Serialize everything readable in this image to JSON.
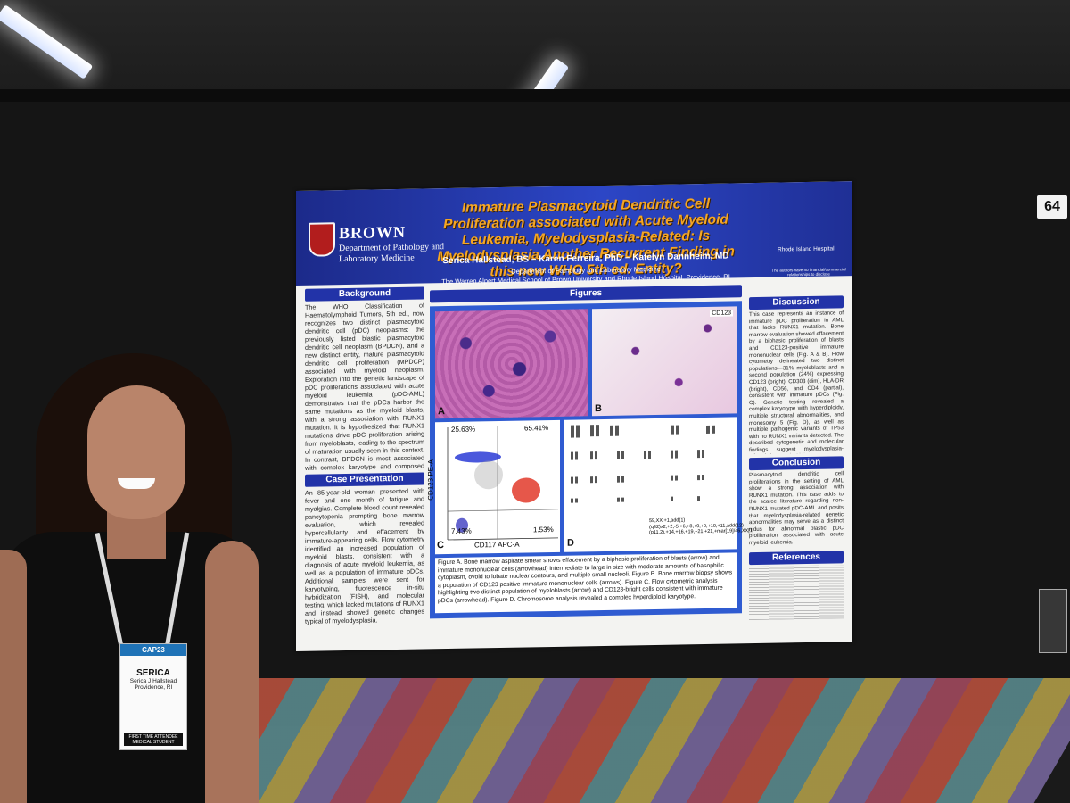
{
  "booth_number": "64",
  "poster": {
    "title": "Immature Plasmacytoid Dendritic Cell Proliferation associated with Acute Myeloid Leukemia, Myelodysplasia-Related: Is Myelodysplasia Another Recurrent Finding in this new WHO 5th ed. Entity?",
    "authors": "Serica Hallstead, BS – Karen Ferreira, PhD – Katelyn Dannheim, MD",
    "department": "Department of Pathology and Laboratory Medicine",
    "school": "The Warren Alpert Medical School of Brown University and Rhode Island Hospital, Providence, RI",
    "logo": {
      "name": "BROWN",
      "dept": "Department of Pathology and Laboratory Medicine"
    },
    "hospital_logo": "Rhode Island Hospital",
    "disclosure": "The authors have no financial/commercial relationships to disclose",
    "sections": {
      "background": {
        "heading": "Background",
        "text": "The WHO Classification of Haematolymphoid Tumors, 5th ed., now recognizes two distinct plasmacytoid dendritic cell (pDC) neoplasms: the previously listed blastic plasmacytoid dendritic cell neoplasm (BPDCN), and a new distinct entity, mature plasmacytoid dendritic cell proliferation (MPDCP) associated with myeloid neoplasm. Exploration into the genetic landscape of pDC proliferations associated with acute myeloid leukemia (pDC-AML) demonstrates that the pDCs harbor the same mutations as the myeloid blasts, with a strong association with RUNX1 mutation. It is hypothesized that RUNX1 mutations drive pDC proliferation arising from myeloblasts, leading to the spectrum of maturation usually seen in this context. In contrast, BPDCN is most associated with complex karyotype and composed entirely of immature pDCs."
      },
      "case_presentation": {
        "heading": "Case Presentation",
        "text": "An 85-year-old woman presented with fever and one month of fatigue and myalgias. Complete blood count revealed pancytopenia prompting bone marrow evaluation, which revealed hypercellularity and effacement by immature-appearing cells. Flow cytometry identified an increased population of myeloid blasts, consistent with a diagnosis of acute myeloid leukemia, as well as a population of immature pDCs. Additional samples were sent for karyotyping, fluorescence in-situ hybridization (FISH), and molecular testing, which lacked mutations of RUNX1 and instead showed genetic changes typical of myelodysplasia."
      },
      "figures": {
        "heading": "Figures",
        "cd123_label": "CD123",
        "panel_letters": [
          "A",
          "B",
          "C",
          "D"
        ],
        "flow": {
          "q1": "25.63%",
          "q2": "65.41%",
          "q3": "7.43%",
          "q4": "1.53%",
          "x_label": "CD117 APC-A",
          "y_label": "CD123 PE-A"
        },
        "karyotype": "59,XX,+1,add(1)(q42)x2,+2,-5,+6,+8,+9,+9,+10,+11,add(12)(p11.2),+14,+16,+19,+21,+21,+mar[19]/46,XX[1]",
        "caption": "Figure A. Bone marrow aspirate smear shows effacement by a biphasic proliferation of blasts (arrow) and immature mononuclear cells (arrowhead) intermediate to large in size with moderate amounts of basophilic cytoplasm, ovoid to lobate nuclear contours, and multiple small nucleoli. Figure B. Bone marrow biopsy shows a population of CD123 positive immature mononuclear cells (arrows). Figure C. Flow cytometric analysis highlighting two distinct population of myeloblasts (arrow) and CD123-bright cells consistent with immature pDCs (arrowhead). Figure D. Chromosome analysis revealed a complex hyperdiploid karyotype."
      },
      "discussion": {
        "heading": "Discussion",
        "text": "This case represents an instance of immature pDC proliferation in AML that lacks RUNX1 mutation. Bone marrow evaluation showed effacement by a biphasic proliferation of blasts and CD123-positive immature mononuclear cells (Fig. A & B). Flow cytometry delineated two distinct populations—31% myeloblasts and a second population (24%) expressing CD123 (bright), CD303 (dim), HLA-DR (bright), CD56, and CD4 (partial), consistent with immature pDCs (Fig. C). Genetic testing revealed a complex karyotype with hyperdiploidy, multiple structural abnormalities, and monosomy 5 (Fig. D), as well as multiple pathogenic variants of TP53 with no RUNX1 variants detected. The described cytogenetic and molecular findings suggest myelodysplasia-related changes in AML."
      },
      "conclusion": {
        "heading": "Conclusion",
        "text": "Plasmacytoid dendritic cell proliferations in the setting of AML show a strong association with RUNX1 mutation. This case adds to the scarce literature regarding non-RUNX1 mutated pDC-AML and posits that myelodysplasia-related genetic abnormalities may serve as a distinct nidus for abnormal blastic pDC proliferation associated with acute myeloid leukemia."
      },
      "references": {
        "heading": "References"
      }
    }
  },
  "badge": {
    "event": "CAP23",
    "first_name": "SERICA",
    "full_name": "Serica J Hallstead",
    "location": "Providence, RI",
    "status": "FIRST TIME ATTENDEE MEDICAL STUDENT"
  }
}
